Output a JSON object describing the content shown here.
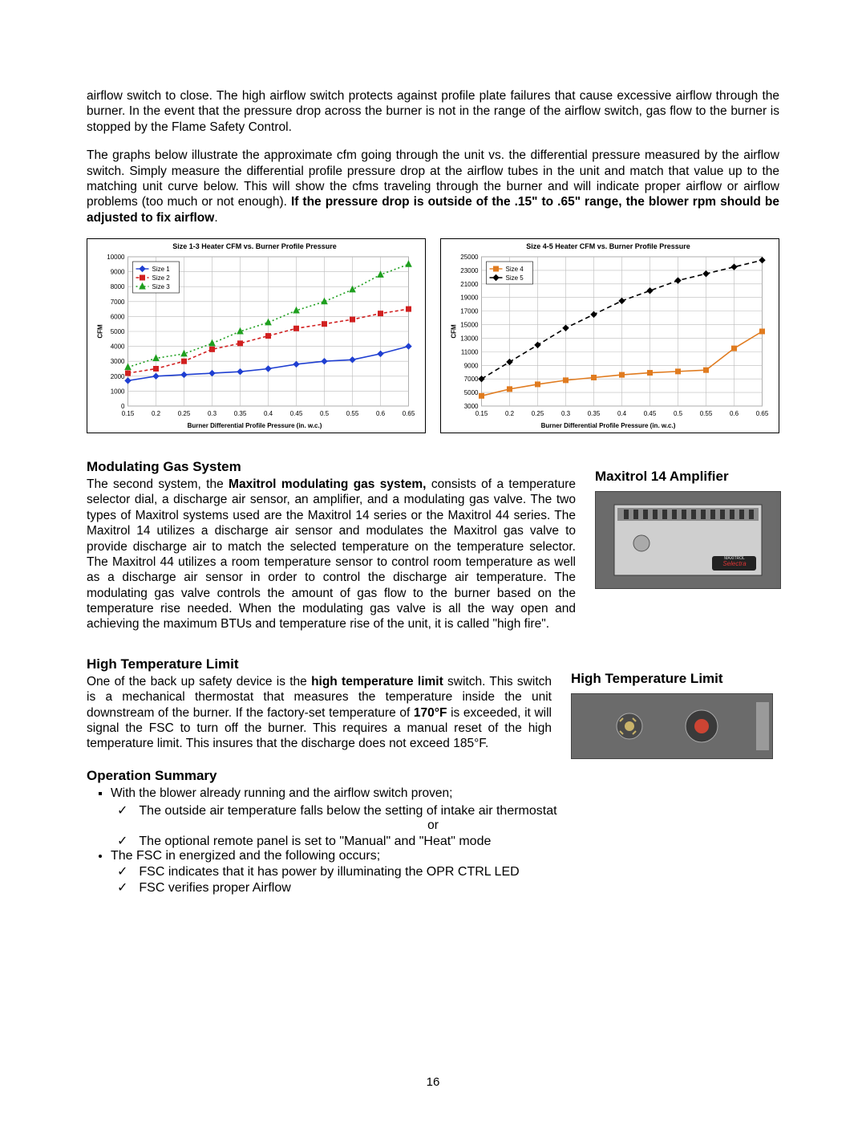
{
  "para1": "airflow switch to close.  The high airflow switch protects against profile plate failures that cause excessive airflow through the burner.  In the event that the pressure drop across the burner is not in the range of the airflow switch, gas flow to the burner is stopped by the Flame Safety Control.",
  "para2_a": "The graphs below illustrate the approximate cfm going through the unit vs. the differential pressure measured by the airflow switch.  Simply measure the differential profile pressure drop at the airflow tubes in the unit and match that value up to the matching unit curve below.  This will show the cfms traveling through the burner and will indicate proper airflow or airflow problems (too much or not enough).  ",
  "para2_b": "If the pressure drop is outside of the .15\" to .65\" range, the blower rpm should be adjusted to fix airflow",
  "para2_c": ".",
  "chart1": {
    "title": "Size 1-3 Heater CFM vs. Burner Profile Pressure",
    "x_label": "Burner Differential Profile Pressure (in. w.c.)",
    "y_label": "CFM",
    "x_ticks": [
      0.15,
      0.2,
      0.25,
      0.3,
      0.35,
      0.4,
      0.45,
      0.5,
      0.55,
      0.6,
      0.65
    ],
    "y_ticks": [
      0,
      1000,
      2000,
      3000,
      4000,
      5000,
      6000,
      7000,
      8000,
      9000,
      10000
    ],
    "y_min": 0,
    "y_max": 10000,
    "bg": "#ffffff",
    "grid": "#c4c4c4",
    "series": [
      {
        "name": "Size 1",
        "color": "#1f3fd1",
        "dash": "0",
        "marker": "diamond",
        "pts": [
          [
            0.15,
            1700
          ],
          [
            0.2,
            2000
          ],
          [
            0.25,
            2100
          ],
          [
            0.3,
            2200
          ],
          [
            0.35,
            2300
          ],
          [
            0.4,
            2500
          ],
          [
            0.45,
            2800
          ],
          [
            0.5,
            3000
          ],
          [
            0.55,
            3100
          ],
          [
            0.6,
            3500
          ],
          [
            0.65,
            4000
          ]
        ]
      },
      {
        "name": "Size 2",
        "color": "#d12020",
        "dash": "4 3",
        "marker": "square",
        "pts": [
          [
            0.15,
            2200
          ],
          [
            0.2,
            2500
          ],
          [
            0.25,
            3000
          ],
          [
            0.3,
            3800
          ],
          [
            0.35,
            4200
          ],
          [
            0.4,
            4700
          ],
          [
            0.45,
            5200
          ],
          [
            0.5,
            5500
          ],
          [
            0.55,
            5800
          ],
          [
            0.6,
            6200
          ],
          [
            0.65,
            6500
          ]
        ]
      },
      {
        "name": "Size 3",
        "color": "#1f9f1f",
        "dash": "2 3",
        "marker": "triangle",
        "pts": [
          [
            0.15,
            2600
          ],
          [
            0.2,
            3200
          ],
          [
            0.25,
            3500
          ],
          [
            0.3,
            4200
          ],
          [
            0.35,
            5000
          ],
          [
            0.4,
            5600
          ],
          [
            0.45,
            6400
          ],
          [
            0.5,
            7000
          ],
          [
            0.55,
            7800
          ],
          [
            0.6,
            8800
          ],
          [
            0.65,
            9500
          ]
        ]
      }
    ],
    "legend": [
      "Size 1",
      "Size 2",
      "Size 3"
    ]
  },
  "chart2": {
    "title": "Size 4-5 Heater CFM vs. Burner Profile Pressure",
    "x_label": "Burner Differential Profile Pressure (in. w.c.)",
    "y_label": "CFM",
    "x_ticks": [
      0.15,
      0.2,
      0.25,
      0.3,
      0.35,
      0.4,
      0.45,
      0.5,
      0.55,
      0.6,
      0.65
    ],
    "y_ticks": [
      3000,
      5000,
      7000,
      9000,
      11000,
      13000,
      15000,
      17000,
      19000,
      21000,
      23000,
      25000
    ],
    "y_min": 3000,
    "y_max": 25000,
    "bg": "#ffffff",
    "grid": "#c4c4c4",
    "series": [
      {
        "name": "Size 4",
        "color": "#e07b1f",
        "dash": "0",
        "marker": "square",
        "pts": [
          [
            0.15,
            4500
          ],
          [
            0.2,
            5500
          ],
          [
            0.25,
            6200
          ],
          [
            0.3,
            6800
          ],
          [
            0.35,
            7200
          ],
          [
            0.4,
            7600
          ],
          [
            0.45,
            7900
          ],
          [
            0.5,
            8100
          ],
          [
            0.55,
            8300
          ],
          [
            0.6,
            11500
          ],
          [
            0.65,
            14000
          ]
        ]
      },
      {
        "name": "Size 5",
        "color": "#000000",
        "dash": "6 4",
        "marker": "diamond",
        "pts": [
          [
            0.15,
            7000
          ],
          [
            0.2,
            9500
          ],
          [
            0.25,
            12000
          ],
          [
            0.3,
            14500
          ],
          [
            0.35,
            16500
          ],
          [
            0.4,
            18500
          ],
          [
            0.45,
            20000
          ],
          [
            0.5,
            21500
          ],
          [
            0.55,
            22500
          ],
          [
            0.6,
            23500
          ],
          [
            0.65,
            24500
          ]
        ]
      }
    ],
    "legend": [
      "Size 4",
      "Size 5"
    ]
  },
  "mod_title": "Modulating Gas System",
  "mod_para_a": "The second system, the ",
  "mod_para_b": "Maxitrol modulating gas system,",
  "mod_para_c": " consists of a temperature selector dial, a   discharge air sensor, an amplifier, and a modulating gas valve. The two types of Maxitrol systems used are the Maxitrol 14 series or the Maxitrol 44 series. The Maxitrol 14 utilizes a discharge air sensor and modulates the Maxitrol gas valve to provide discharge air to match the selected temperature on the temperature selector. The Maxitrol 44 utilizes a room temperature sensor to control room temperature as well as a discharge air sensor in order to control the discharge air temperature. The modulating gas valve controls the amount of gas flow to the burner based on the temperature rise needed. When the modulating gas valve is all the way open and achieving the maximum BTUs and temperature rise of the unit, it is called \"high fire\".",
  "side1_title": "Maxitrol 14 Amplifier",
  "htl_title": "High Temperature Limit",
  "htl_para_a": "One of the back up safety device is the ",
  "htl_para_b": "high temperature limit",
  "htl_para_c": " switch. This switch is a mechanical thermostat that measures the temperature inside the unit downstream of the burner.  If the factory-set temperature of ",
  "htl_para_d": "170°F",
  "htl_para_e": " is exceeded, it will signal the FSC to turn off the burner. This requires a manual reset of the high temperature limit.  This insures that the discharge does not exceed 185°F.",
  "side2_title": "High Temperature Limit",
  "op_title": "Operation Summary",
  "op": {
    "l1": "With the blower already running and the airflow switch proven;",
    "l1a": "The outside air temperature falls below the setting of intake air thermostat",
    "or": "or",
    "l1b": "The optional remote panel is set to \"Manual\" and \"Heat\" mode",
    "l2": "The FSC in energized and the following occurs;",
    "l2a": "FSC indicates that it has power by illuminating the OPR CTRL LED",
    "l2b": "FSC verifies proper Airflow"
  },
  "page_num": "16"
}
